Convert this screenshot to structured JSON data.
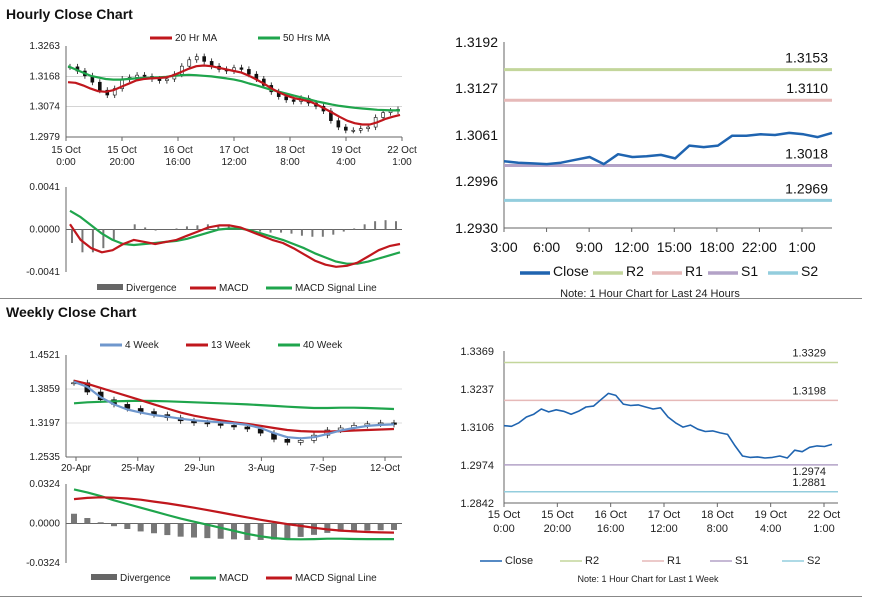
{
  "hourly": {
    "title": "Hourly Close Chart",
    "legend": [
      {
        "label": "20 Hr MA",
        "color": "#c0171d"
      },
      {
        "label": "50 Hrs MA",
        "color": "#1fa54c"
      }
    ],
    "price_chart": {
      "type": "candlestick-line",
      "yticks": [
        "1.3263",
        "1.3168",
        "1.3074",
        "1.2979"
      ],
      "ylim": [
        1.2979,
        1.3263
      ],
      "xticks": [
        [
          "15 Oct",
          "0:00"
        ],
        [
          "15 Oct",
          "20:00"
        ],
        [
          "16 Oct",
          "16:00"
        ],
        [
          "17 Oct",
          "12:00"
        ],
        [
          "18 Oct",
          "8:00"
        ],
        [
          "19 Oct",
          "4:00"
        ],
        [
          "22 Oct",
          "1:00"
        ]
      ],
      "close": [
        1.3198,
        1.3185,
        1.317,
        1.315,
        1.3125,
        1.311,
        1.313,
        1.316,
        1.3165,
        1.3172,
        1.3168,
        1.316,
        1.3155,
        1.316,
        1.3175,
        1.32,
        1.322,
        1.323,
        1.3215,
        1.32,
        1.319,
        1.3185,
        1.3195,
        1.319,
        1.3175,
        1.316,
        1.314,
        1.312,
        1.3105,
        1.3095,
        1.309,
        1.31,
        1.3085,
        1.3075,
        1.306,
        1.303,
        1.301,
        1.3,
        1.3,
        1.3005,
        1.301,
        1.304,
        1.3055,
        1.306,
        1.3065
      ],
      "ma20": [
        1.315,
        1.3148,
        1.314,
        1.313,
        1.3122,
        1.312,
        1.3125,
        1.3135,
        1.3145,
        1.3155,
        1.316,
        1.3162,
        1.3163,
        1.3165,
        1.3172,
        1.3182,
        1.3192,
        1.32,
        1.3202,
        1.32,
        1.3195,
        1.319,
        1.3185,
        1.318,
        1.317,
        1.3158,
        1.3145,
        1.313,
        1.3118,
        1.3108,
        1.31,
        1.3095,
        1.309,
        1.308,
        1.3068,
        1.3055,
        1.3042,
        1.303,
        1.3022,
        1.3018,
        1.3018,
        1.3025,
        1.3035,
        1.3042,
        1.3048
      ],
      "ma50": [
        1.32,
        1.319,
        1.318,
        1.317,
        1.3165,
        1.316,
        1.3158,
        1.3158,
        1.316,
        1.3162,
        1.3163,
        1.3164,
        1.3165,
        1.3167,
        1.317,
        1.3172,
        1.3173,
        1.3172,
        1.317,
        1.3168,
        1.3165,
        1.3162,
        1.3158,
        1.3153,
        1.3146,
        1.314,
        1.3133,
        1.3126,
        1.312,
        1.3114,
        1.3108,
        1.3102,
        1.3096,
        1.309,
        1.3085,
        1.308,
        1.3076,
        1.3073,
        1.307,
        1.3068,
        1.3066,
        1.3064,
        1.3063,
        1.3062,
        1.3062
      ]
    },
    "macd_chart": {
      "type": "macd",
      "yticks": [
        "0.0041",
        "0.0000",
        "-0.0041"
      ],
      "ylim": [
        -0.0041,
        0.0041
      ],
      "legend": [
        {
          "label": "Divergence",
          "color": "#666666"
        },
        {
          "label": "MACD",
          "color": "#c0171d"
        },
        {
          "label": "MACD Signal Line",
          "color": "#1fa54c"
        }
      ],
      "macd": [
        0.0005,
        -0.001,
        -0.0018,
        -0.0022,
        -0.002,
        -0.0014,
        -0.001,
        -0.0012,
        -0.0014,
        -0.0012,
        -0.001,
        -0.0006,
        -0.0002,
        0.0002,
        0.0004,
        0.0004,
        0.0002,
        -0.0002,
        -0.0006,
        -0.001,
        -0.0013,
        -0.0018,
        -0.0024,
        -0.003,
        -0.0034,
        -0.0036,
        -0.0035,
        -0.0032,
        -0.0026,
        -0.002,
        -0.0016,
        -0.0014
      ],
      "signal": [
        0.0018,
        0.0012,
        0.0004,
        -0.0004,
        -0.001,
        -0.0014,
        -0.0015,
        -0.0014,
        -0.0013,
        -0.0012,
        -0.0011,
        -0.0009,
        -0.0006,
        -0.0003,
        0.0,
        0.0001,
        0.0001,
        -0.0001,
        -0.0004,
        -0.0007,
        -0.001,
        -0.0014,
        -0.0018,
        -0.0023,
        -0.0027,
        -0.0031,
        -0.0033,
        -0.0033,
        -0.0031,
        -0.0028,
        -0.0025,
        -0.0022
      ],
      "divergence": [
        -0.0013,
        -0.0022,
        -0.0022,
        -0.0018,
        -0.001,
        0.0,
        0.0005,
        0.0002,
        -0.0001,
        0.0,
        0.0001,
        0.0003,
        0.0004,
        0.0005,
        0.0004,
        0.0003,
        0.0001,
        -0.0001,
        -0.0002,
        -0.0003,
        -0.0003,
        -0.0004,
        -0.0006,
        -0.0007,
        -0.0007,
        -0.0005,
        -0.0002,
        0.0001,
        0.0005,
        0.0008,
        0.0009,
        0.0008
      ]
    },
    "pivot_chart": {
      "type": "line",
      "yticks": [
        "1.3192",
        "1.3127",
        "1.3061",
        "1.2996",
        "1.2930"
      ],
      "ylim": [
        1.293,
        1.3192
      ],
      "xticks": [
        "3:00",
        "6:00",
        "9:00",
        "12:00",
        "15:00",
        "18:00",
        "22:00",
        "1:00"
      ],
      "close": [
        1.3024,
        1.3022,
        1.3021,
        1.302,
        1.3022,
        1.3026,
        1.303,
        1.302,
        1.3034,
        1.303,
        1.3031,
        1.3033,
        1.3028,
        1.3046,
        1.3044,
        1.3046,
        1.306,
        1.306,
        1.3062,
        1.3061,
        1.3064,
        1.3062,
        1.3058,
        1.3064
      ],
      "levels": [
        {
          "name": "R2",
          "value": 1.3153,
          "label": "1.3153",
          "color": "#c3d69b"
        },
        {
          "name": "R1",
          "value": 1.311,
          "label": "1.3110",
          "color": "#e6b9b8"
        },
        {
          "name": "S1",
          "value": 1.3018,
          "label": "1.3018",
          "color": "#b3a2c7"
        },
        {
          "name": "S2",
          "value": 1.2969,
          "label": "1.2969",
          "color": "#93cddd"
        }
      ],
      "legend": [
        {
          "label": "Close",
          "color": "#1f64b0"
        },
        {
          "label": "R2",
          "color": "#c3d69b"
        },
        {
          "label": "R1",
          "color": "#e6b9b8"
        },
        {
          "label": "S1",
          "color": "#b3a2c7"
        },
        {
          "label": "S2",
          "color": "#93cddd"
        }
      ],
      "note": "Note: 1 Hour Chart for Last 24 Hours"
    }
  },
  "weekly": {
    "title": "Weekly Close Chart",
    "legend": [
      {
        "label": "4 Week",
        "color": "#6f97cd"
      },
      {
        "label": "13 Week",
        "color": "#c0171d"
      },
      {
        "label": "40 Week",
        "color": "#1fa54c"
      }
    ],
    "price_chart": {
      "type": "candlestick-line",
      "yticks": [
        "1.4521",
        "1.3859",
        "1.3197",
        "1.2535"
      ],
      "ylim": [
        1.2535,
        1.4521
      ],
      "xticks": [
        "20-Apr",
        "25-May",
        "29-Jun",
        "3-Aug",
        "7-Sep",
        "12-Oct"
      ],
      "close": [
        1.398,
        1.38,
        1.365,
        1.356,
        1.348,
        1.342,
        1.336,
        1.33,
        1.324,
        1.32,
        1.318,
        1.315,
        1.312,
        1.308,
        1.3,
        1.288,
        1.282,
        1.286,
        1.296,
        1.306,
        1.31,
        1.315,
        1.318,
        1.32,
        1.317
      ],
      "wk4": [
        1.4,
        1.39,
        1.37,
        1.356,
        1.346,
        1.34,
        1.335,
        1.332,
        1.328,
        1.325,
        1.323,
        1.321,
        1.319,
        1.316,
        1.31,
        1.3,
        1.292,
        1.29,
        1.292,
        1.298,
        1.305,
        1.31,
        1.314,
        1.316,
        1.317
      ],
      "wk13": [
        1.402,
        1.396,
        1.388,
        1.38,
        1.372,
        1.364,
        1.356,
        1.348,
        1.34,
        1.334,
        1.329,
        1.325,
        1.321,
        1.318,
        1.314,
        1.31,
        1.306,
        1.304,
        1.303,
        1.303,
        1.304,
        1.305,
        1.306,
        1.307,
        1.308
      ],
      "wk40": [
        1.358,
        1.36,
        1.361,
        1.362,
        1.3625,
        1.363,
        1.3625,
        1.362,
        1.361,
        1.36,
        1.359,
        1.358,
        1.357,
        1.356,
        1.3545,
        1.353,
        1.3515,
        1.35,
        1.349,
        1.349,
        1.3495,
        1.3495,
        1.349,
        1.348,
        1.347
      ]
    },
    "macd_chart": {
      "type": "macd",
      "yticks": [
        "0.0324",
        "0.0000",
        "-0.0324"
      ],
      "ylim": [
        -0.0324,
        0.0324
      ],
      "legend": [
        {
          "label": "Divergence",
          "color": "#666666"
        },
        {
          "label": "MACD",
          "color": "#1fa54c"
        },
        {
          "label": "MACD Signal Line",
          "color": "#c0171d"
        }
      ],
      "macd": [
        0.028,
        0.0255,
        0.0225,
        0.019,
        0.016,
        0.013,
        0.01,
        0.007,
        0.004,
        0.0015,
        -0.001,
        -0.0035,
        -0.006,
        -0.0085,
        -0.0105,
        -0.012,
        -0.0128,
        -0.013,
        -0.0128,
        -0.0125,
        -0.0125,
        -0.0127,
        -0.0128,
        -0.0128,
        -0.0128
      ],
      "signal": [
        0.02,
        0.021,
        0.0215,
        0.0212,
        0.0205,
        0.0195,
        0.018,
        0.0165,
        0.0148,
        0.013,
        0.011,
        0.009,
        0.007,
        0.005,
        0.003,
        0.0012,
        -0.0005,
        -0.002,
        -0.0035,
        -0.0048,
        -0.0058,
        -0.0065,
        -0.007,
        -0.0073,
        -0.0075
      ],
      "divergence": [
        0.008,
        0.0045,
        0.001,
        -0.0022,
        -0.0045,
        -0.0065,
        -0.008,
        -0.0095,
        -0.0108,
        -0.0115,
        -0.012,
        -0.0125,
        -0.013,
        -0.0135,
        -0.0135,
        -0.0132,
        -0.0123,
        -0.011,
        -0.0093,
        -0.0077,
        -0.0067,
        -0.0062,
        -0.0058,
        -0.0055,
        -0.0053
      ]
    },
    "pivot_chart": {
      "type": "line",
      "yticks": [
        "1.3369",
        "1.3237",
        "1.3106",
        "1.2974",
        "1.2842"
      ],
      "ylim": [
        1.2842,
        1.3369
      ],
      "xticks": [
        [
          "15 Oct",
          "0:00"
        ],
        [
          "15 Oct",
          "20:00"
        ],
        [
          "16 Oct",
          "16:00"
        ],
        [
          "17 Oct",
          "12:00"
        ],
        [
          "18 Oct",
          "8:00"
        ],
        [
          "19 Oct",
          "4:00"
        ],
        [
          "22 Oct",
          "1:00"
        ]
      ],
      "close": [
        1.311,
        1.3108,
        1.312,
        1.314,
        1.315,
        1.3168,
        1.3158,
        1.3165,
        1.316,
        1.315,
        1.316,
        1.3175,
        1.3178,
        1.32,
        1.3222,
        1.3215,
        1.3185,
        1.318,
        1.3182,
        1.3175,
        1.3168,
        1.3172,
        1.314,
        1.312,
        1.3105,
        1.3112,
        1.3098,
        1.309,
        1.3092,
        1.3085,
        1.308,
        1.304,
        1.3005,
        1.3,
        1.3002,
        1.2998,
        1.3,
        1.3005,
        1.2998,
        1.3025,
        1.302,
        1.3035,
        1.304,
        1.3038,
        1.3045
      ],
      "levels": [
        {
          "name": "R2",
          "value": 1.3329,
          "label": "1.3329",
          "color": "#c3d69b"
        },
        {
          "name": "R1",
          "value": 1.3198,
          "label": "1.3198",
          "color": "#e6b9b8"
        },
        {
          "name": "S1",
          "value": 1.2974,
          "label": "1.2974",
          "color": "#b3a2c7"
        },
        {
          "name": "S2",
          "value": 1.2881,
          "label": "1.2881",
          "color": "#93cddd"
        }
      ],
      "legend": [
        {
          "label": "Close",
          "color": "#1f64b0"
        },
        {
          "label": "R2",
          "color": "#c3d69b"
        },
        {
          "label": "R1",
          "color": "#e6b9b8"
        },
        {
          "label": "S1",
          "color": "#b3a2c7"
        },
        {
          "label": "S2",
          "color": "#93cddd"
        }
      ],
      "note": "Note: 1 Hour Chart for Last 1 Week"
    }
  },
  "chart_data": [
    {
      "type": "line",
      "title": "Hourly Close Chart",
      "series": [
        {
          "name": "20 Hr MA"
        },
        {
          "name": "50 Hrs MA"
        }
      ]
    },
    {
      "type": "line",
      "title": "Weekly Close Chart",
      "series": [
        {
          "name": "4 Week"
        },
        {
          "name": "13 Week"
        },
        {
          "name": "40 Week"
        }
      ]
    }
  ]
}
